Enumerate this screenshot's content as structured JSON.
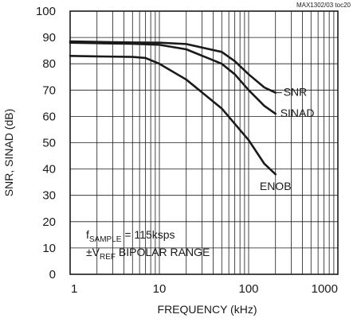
{
  "chart_data": {
    "type": "line",
    "figure_id": "MAX1302/03 toc20",
    "xlabel": "FREQUENCY (kHz)",
    "ylabel": "SNR, SINAD (dB)",
    "x_scale": "log",
    "xlim": [
      1,
      1000
    ],
    "ylim": [
      0,
      100
    ],
    "x_ticks": [
      1,
      10,
      100,
      1000
    ],
    "x_tick_labels": [
      "1",
      "10",
      "100",
      "1000"
    ],
    "y_ticks": [
      0,
      10,
      20,
      30,
      40,
      50,
      60,
      70,
      80,
      90,
      100
    ],
    "y_tick_labels": [
      "0",
      "10",
      "20",
      "30",
      "40",
      "50",
      "60",
      "70",
      "80",
      "90",
      "100"
    ],
    "grid": true,
    "series": [
      {
        "name": "SNR",
        "x": [
          1,
          2,
          5,
          10,
          20,
          50,
          70,
          100,
          150,
          200
        ],
        "y": [
          88.5,
          88.3,
          88.1,
          88.0,
          87.5,
          84.5,
          81,
          76,
          71,
          69
        ]
      },
      {
        "name": "SINAD",
        "x": [
          1,
          2,
          5,
          10,
          20,
          50,
          70,
          100,
          150,
          200
        ],
        "y": [
          88.0,
          87.8,
          87.6,
          87.2,
          85.5,
          80,
          76,
          70,
          64,
          61
        ]
      },
      {
        "name": "ENOB",
        "x": [
          1,
          2,
          5,
          7,
          10,
          20,
          50,
          100,
          150,
          200
        ],
        "y": [
          83.0,
          82.8,
          82.6,
          82.2,
          80,
          74,
          63,
          51,
          42,
          38
        ]
      }
    ],
    "annotations": {
      "fsample_main": "f",
      "fsample_sub": "SAMPLE",
      "fsample_rest": " = 115ksps",
      "vref_prefix": "±V",
      "vref_sub": "REF",
      "vref_rest": " BIPOLAR RANGE"
    }
  }
}
